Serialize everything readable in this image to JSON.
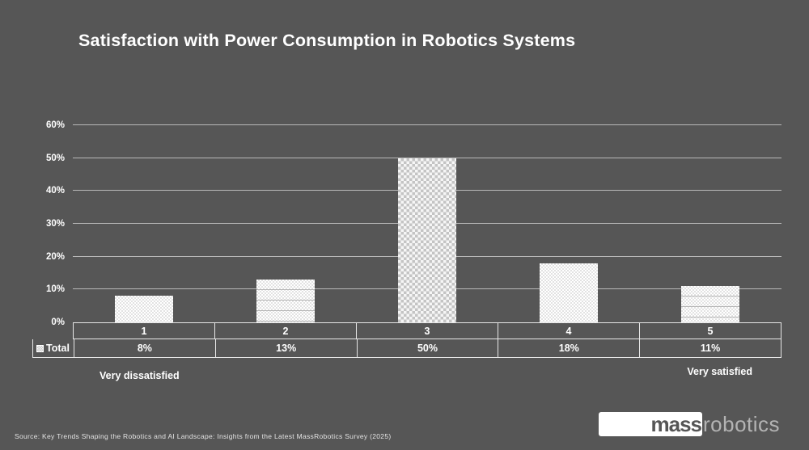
{
  "title": "Satisfaction with Power Consumption in Robotics Systems",
  "chart_data": {
    "type": "bar",
    "title": "Satisfaction with Power Consumption in Robotics Systems",
    "categories": [
      "1",
      "2",
      "3",
      "4",
      "5"
    ],
    "series": [
      {
        "name": "Total",
        "values": [
          8,
          13,
          50,
          18,
          11
        ]
      }
    ],
    "value_labels": [
      "8%",
      "13%",
      "50%",
      "18%",
      "11%"
    ],
    "xlabel": "",
    "ylabel": "",
    "ylim": [
      0,
      60
    ],
    "yticks": [
      0,
      10,
      20,
      30,
      40,
      50,
      60
    ],
    "ytick_labels": [
      "0%",
      "10%",
      "20%",
      "30%",
      "40%",
      "50%",
      "60%"
    ],
    "grid": true,
    "legend_position": "table-left",
    "bar_patterns": [
      "fine-dots",
      "horizontal-lines",
      "dotted-grid",
      "fine-dots",
      "horizontal-lines"
    ],
    "annotations": {
      "left_end": "Very dissatisfied",
      "right_end": "Very satisfied"
    }
  },
  "table": {
    "legend_label": "Total"
  },
  "footer": {
    "source": "Source: Key Trends Shaping the Robotics and AI Landscape: Insights from the Latest MassRobotics Survey (2025)"
  },
  "logo": {
    "part1": "mass",
    "part2": "robotics"
  },
  "colors": {
    "background": "#565656",
    "title_text": "#ffffff",
    "gridline": "#c9c9c9",
    "table_border": "#e7e7e7",
    "bar_base": "#ffffff",
    "source_text": "#e3e3e3",
    "logo_gray": "#b3b3b3"
  }
}
